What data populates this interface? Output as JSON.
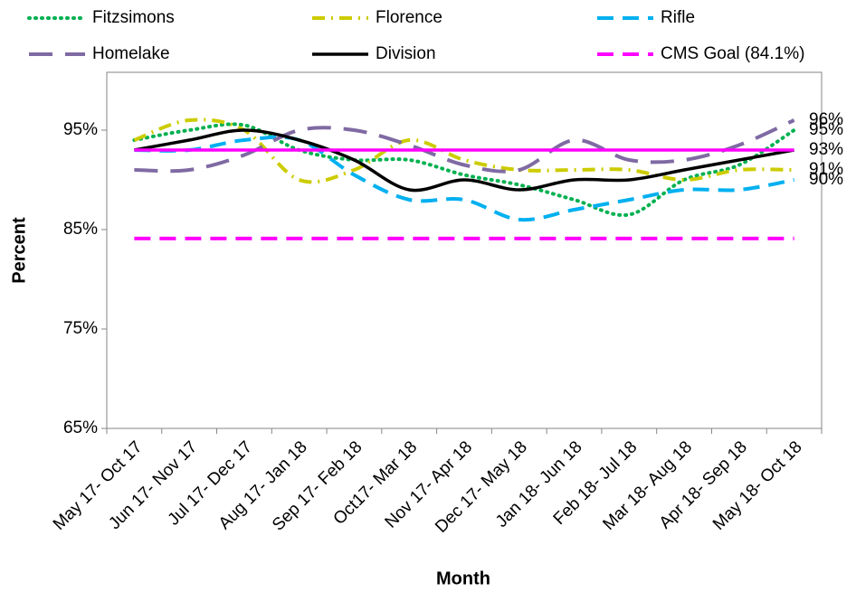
{
  "chart_data": {
    "type": "line",
    "x_label": "Month",
    "y_label": "Percent",
    "categories": [
      "May 17- Oct 17",
      "Jun 17- Nov 17",
      "Jul 17- Dec 17",
      "Aug 17- Jan 18",
      "Sep 17- Feb 18",
      "Oct17- Mar 18",
      "Nov 17- Apr 18",
      "Dec 17- May 18",
      "Jan 18- Jun 18",
      "Feb 18- Jul 18",
      "Mar 18- Aug 18",
      "Apr 18- Sep 18",
      "May 18- Oct 18"
    ],
    "ylim": [
      65,
      100
    ],
    "yticks": [
      {
        "value": 65,
        "label": "65%"
      },
      {
        "value": 75,
        "label": "75%"
      },
      {
        "value": 85,
        "label": "85%"
      },
      {
        "value": 95,
        "label": "95%"
      }
    ],
    "smooth": true,
    "series": [
      {
        "name": "Fitzsimons",
        "color": "#00b050",
        "line_style": "dotted",
        "values": [
          94,
          95,
          95.5,
          93,
          92,
          92,
          90.5,
          89.5,
          88,
          86.5,
          90,
          91.5,
          95
        ],
        "value_labels": [
          null,
          null,
          null,
          null,
          null,
          null,
          null,
          null,
          null,
          null,
          null,
          null,
          "95%"
        ]
      },
      {
        "name": "Florence",
        "color": "#cccc00",
        "line_style": "dashdot",
        "values": [
          94,
          96,
          95,
          90,
          91,
          94,
          92,
          91,
          91,
          91,
          90,
          91,
          91
        ],
        "value_labels": [
          null,
          null,
          null,
          null,
          null,
          null,
          null,
          null,
          null,
          null,
          null,
          null,
          "91%"
        ]
      },
      {
        "name": "Rifle",
        "color": "#00b0f0",
        "line_style": "dashed",
        "values": [
          93,
          93,
          94,
          94,
          90.5,
          88,
          88,
          86,
          87,
          88,
          89,
          89,
          90
        ],
        "value_labels": [
          null,
          null,
          null,
          null,
          null,
          null,
          null,
          null,
          null,
          null,
          null,
          null,
          "90%"
        ]
      },
      {
        "name": "Homelake",
        "color": "#7f6aa3",
        "line_style": "longdash",
        "values": [
          91,
          91,
          92.5,
          95,
          95,
          93.5,
          91.5,
          91,
          94,
          92,
          92,
          93.5,
          96
        ],
        "value_labels": [
          null,
          null,
          null,
          null,
          null,
          null,
          null,
          null,
          null,
          null,
          null,
          null,
          "96%"
        ]
      },
      {
        "name": "Division",
        "color": "#000000",
        "line_style": "solid",
        "values": [
          93,
          94,
          95,
          94,
          92,
          89,
          90,
          89,
          90,
          90,
          91,
          92,
          93
        ],
        "value_labels": [
          null,
          null,
          null,
          null,
          null,
          null,
          null,
          null,
          null,
          null,
          null,
          null,
          "93%"
        ]
      },
      {
        "name": "CMS Goal (84.1%)",
        "color": "#ff00ff",
        "line_style": "dashed",
        "values": [
          84.1,
          84.1,
          84.1,
          84.1,
          84.1,
          84.1,
          84.1,
          84.1,
          84.1,
          84.1,
          84.1,
          84.1,
          84.1
        ]
      },
      {
        "color": "#ff00ff",
        "line_style": "solid",
        "values": [
          93,
          93,
          93,
          93,
          93,
          93,
          93,
          93,
          93,
          93,
          93,
          93,
          93
        ]
      }
    ]
  }
}
